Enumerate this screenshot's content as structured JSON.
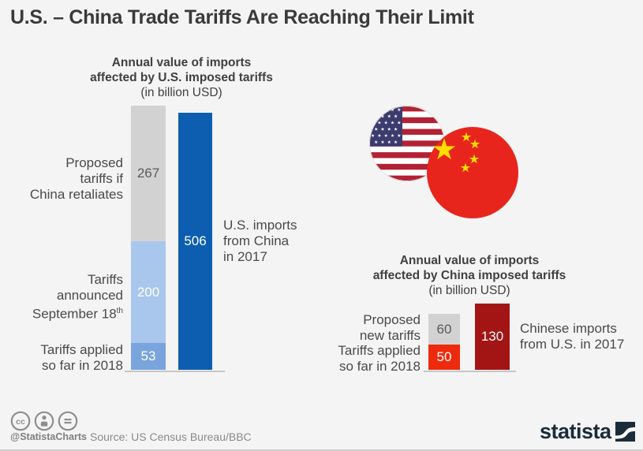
{
  "title": "U.S. – China Trade Tariffs Are Reaching Their Limit",
  "colors": {
    "background": "#f4f4f4",
    "bar_gray": "#d2d2d2",
    "bar_light_blue": "#a9c6ed",
    "bar_medium_blue": "#7aa4dc",
    "bar_dark_blue": "#0d5eb1",
    "bar_bright_red": "#ed2a0d",
    "bar_dark_red": "#a31515",
    "axis_line": "#c6c6c6",
    "logo_navy": "#1a2b3c",
    "footer_gray": "#8a8a8a"
  },
  "left_chart": {
    "heading": {
      "line1": "Annual value of imports",
      "line2": "affected by U.S. imposed tariffs",
      "line3": "(in billion USD)"
    },
    "labels": {
      "proposed_line1": "Proposed",
      "proposed_line2": "tariffs if",
      "proposed_line3": "China retaliates",
      "announced_line1": "Tariffs",
      "announced_line2": "announced",
      "announced_line3": "September 18",
      "announced_sup": "th",
      "applied_line1": "Tariffs applied",
      "applied_line2": "so far in 2018",
      "total_line1": "U.S. imports",
      "total_line2": "from China",
      "total_line3": "in 2017"
    }
  },
  "right_chart": {
    "heading": {
      "line1": "Annual value of imports",
      "line2": "affected by China imposed tariffs",
      "line3": "(in billion USD)"
    },
    "labels": {
      "proposed_line1": "Proposed",
      "proposed_line2": "new tariffs",
      "applied_line1": "Tariffs applied",
      "applied_line2": "so far in 2018",
      "total_line1": "Chinese imports",
      "total_line2": "from U.S. in 2017"
    }
  },
  "footer": {
    "handle": "@StatistaCharts",
    "source": "Source: US Census Bureau/BBC",
    "logo_text": "statista"
  },
  "icons": {
    "cc": "cc-icon",
    "cc_by": "cc-by-person-icon",
    "cc_nd": "cc-nd-equals-icon",
    "us_flag": "us-flag-circle-icon",
    "china_flag": "china-flag-circle-icon",
    "statista_square": "statista-logo-swoosh-icon"
  },
  "chart_data": [
    {
      "type": "bar",
      "title": "Annual value of imports affected by U.S. imposed tariffs (in billion USD)",
      "unit": "billion USD",
      "layout": "one stacked bar plus one total bar, horizontal baseline, no gridlines",
      "bars": [
        {
          "label": "Proposed tariffs if China retaliates",
          "value": 267,
          "bar": "stacked",
          "color": "#d2d2d2"
        },
        {
          "label": "Tariffs announced September 18th",
          "value": 200,
          "bar": "stacked",
          "color": "#a9c6ed"
        },
        {
          "label": "Tariffs applied so far in 2018",
          "value": 53,
          "bar": "stacked",
          "color": "#7aa4dc"
        },
        {
          "label": "U.S. imports from China in 2017",
          "value": 506,
          "bar": "total",
          "color": "#0d5eb1"
        }
      ]
    },
    {
      "type": "bar",
      "title": "Annual value of imports affected by China imposed tariffs (in billion USD)",
      "unit": "billion USD",
      "layout": "one stacked bar plus one total bar, horizontal baseline, no gridlines",
      "bars": [
        {
          "label": "Proposed new tariffs",
          "value": 60,
          "bar": "stacked",
          "color": "#d2d2d2"
        },
        {
          "label": "Tariffs applied so far in 2018",
          "value": 50,
          "bar": "stacked",
          "color": "#ed2a0d"
        },
        {
          "label": "Chinese imports from U.S. in 2017",
          "value": 130,
          "bar": "total",
          "color": "#a31515"
        }
      ]
    }
  ]
}
